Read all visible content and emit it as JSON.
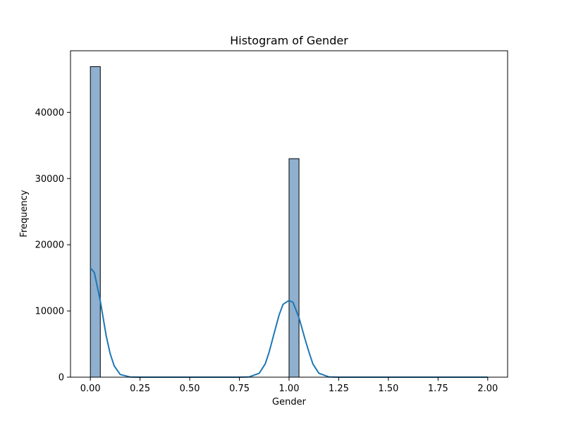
{
  "chart_data": {
    "type": "bar",
    "title": "Histogram of Gender",
    "xlabel": "Gender",
    "ylabel": "Frequency",
    "xlim": [
      -0.1,
      2.1
    ],
    "ylim": [
      0,
      49300
    ],
    "grid": false,
    "x_ticks": [
      0.0,
      0.25,
      0.5,
      0.75,
      1.0,
      1.25,
      1.5,
      1.75,
      2.0
    ],
    "x_tick_labels": [
      "0.00",
      "0.25",
      "0.50",
      "0.75",
      "1.00",
      "1.25",
      "1.50",
      "1.75",
      "2.00"
    ],
    "y_ticks": [
      0,
      10000,
      20000,
      30000,
      40000
    ],
    "y_tick_labels": [
      "0",
      "10000",
      "20000",
      "30000",
      "40000"
    ],
    "bars": [
      {
        "x0": 0.0,
        "x1": 0.05,
        "value": 46900
      },
      {
        "x0": 1.0,
        "x1": 1.05,
        "value": 33000
      }
    ],
    "kde": {
      "x": [
        0.0,
        0.02,
        0.05,
        0.08,
        0.1,
        0.12,
        0.15,
        0.2,
        0.25,
        0.5,
        0.75,
        0.8,
        0.85,
        0.88,
        0.9,
        0.93,
        0.95,
        0.97,
        1.0,
        1.02,
        1.05,
        1.08,
        1.1,
        1.12,
        1.15,
        1.2,
        1.25,
        1.5,
        1.75,
        2.0
      ],
      "y": [
        16500,
        15800,
        11500,
        6200,
        3500,
        1700,
        400,
        30,
        0,
        0,
        0,
        40,
        600,
        2000,
        3800,
        7200,
        9400,
        11000,
        11600,
        11300,
        9000,
        5800,
        3800,
        2000,
        600,
        40,
        0,
        0,
        0,
        0
      ]
    },
    "bar_color": "#8fb0cf",
    "bar_edge_color": "#000000",
    "line_color": "#1f77b4"
  }
}
